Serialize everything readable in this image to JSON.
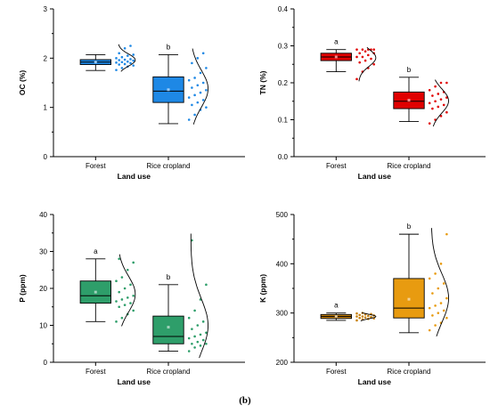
{
  "caption": "(b)",
  "chart_data": [
    {
      "type": "box",
      "ylabel": "OC (%)",
      "xlabel": "Land use",
      "ylim": [
        0,
        3
      ],
      "yticks": [
        0,
        1,
        2,
        3
      ],
      "categories": [
        "Forest",
        "Rice cropland"
      ],
      "sig_letters": [
        "",
        "b"
      ],
      "colors": [
        "#1e88e5",
        "#1e88e5"
      ],
      "boxes": [
        {
          "min": 1.75,
          "q1": 1.87,
          "median": 1.92,
          "q3": 1.97,
          "max": 2.07,
          "mean": 1.92
        },
        {
          "min": 0.67,
          "q1": 1.1,
          "median": 1.33,
          "q3": 1.62,
          "max": 2.07,
          "mean": 1.36
        }
      ],
      "points": [
        [
          1.76,
          1.8,
          1.83,
          1.85,
          1.87,
          1.88,
          1.9,
          1.91,
          1.92,
          1.93,
          1.95,
          1.96,
          1.97,
          1.98,
          2.0,
          2.02,
          2.05,
          2.07,
          2.1,
          2.2,
          2.25
        ],
        [
          0.75,
          0.85,
          0.95,
          1.0,
          1.05,
          1.1,
          1.15,
          1.2,
          1.25,
          1.3,
          1.35,
          1.4,
          1.45,
          1.5,
          1.55,
          1.6,
          1.7,
          1.8,
          1.9,
          2.0,
          2.1
        ]
      ]
    },
    {
      "type": "box",
      "ylabel": "TN (%)",
      "xlabel": "Land use",
      "ylim": [
        0,
        0.4
      ],
      "yticks": [
        0.0,
        0.1,
        0.2,
        0.3,
        0.4
      ],
      "categories": [
        "Forest",
        "Rice cropland"
      ],
      "sig_letters": [
        "a",
        "b"
      ],
      "colors": [
        "#e00000",
        "#e00000"
      ],
      "boxes": [
        {
          "min": 0.23,
          "q1": 0.26,
          "median": 0.27,
          "q3": 0.28,
          "max": 0.29,
          "mean": 0.27
        },
        {
          "min": 0.095,
          "q1": 0.13,
          "median": 0.15,
          "q3": 0.175,
          "max": 0.215,
          "mean": 0.153
        }
      ],
      "points": [
        [
          0.21,
          0.23,
          0.24,
          0.25,
          0.255,
          0.26,
          0.265,
          0.27,
          0.27,
          0.275,
          0.28,
          0.28,
          0.285,
          0.29,
          0.29,
          0.29,
          0.29,
          0.29
        ],
        [
          0.09,
          0.1,
          0.11,
          0.12,
          0.13,
          0.135,
          0.14,
          0.145,
          0.15,
          0.155,
          0.16,
          0.165,
          0.17,
          0.175,
          0.18,
          0.19,
          0.2,
          0.2
        ]
      ]
    },
    {
      "type": "box",
      "ylabel": "P (ppm)",
      "xlabel": "Land use",
      "ylim": [
        0,
        40
      ],
      "yticks": [
        0,
        10,
        20,
        30,
        40
      ],
      "categories": [
        "Forest",
        "Rice cropland"
      ],
      "sig_letters": [
        "a",
        "b"
      ],
      "colors": [
        "#2e9e6a",
        "#2e9e6a"
      ],
      "boxes": [
        {
          "min": 11,
          "q1": 16,
          "median": 18,
          "q3": 22,
          "max": 28,
          "mean": 19
        },
        {
          "min": 3,
          "q1": 5,
          "median": 7,
          "q3": 12.5,
          "max": 21,
          "mean": 9.5
        }
      ],
      "points": [
        [
          11,
          12,
          13,
          14,
          15,
          15.5,
          16,
          16.5,
          17,
          17.5,
          18,
          19,
          20,
          21,
          22,
          23,
          25,
          27,
          28
        ],
        [
          3,
          4,
          4.5,
          5,
          5,
          5.5,
          6,
          6.5,
          7,
          7.5,
          8,
          9,
          10,
          11,
          12,
          14,
          17,
          21,
          33
        ]
      ]
    },
    {
      "type": "box",
      "ylabel": "K (ppm)",
      "xlabel": "Land use",
      "ylim": [
        200,
        500
      ],
      "yticks": [
        200,
        300,
        400,
        500
      ],
      "categories": [
        "Forest",
        "Rice cropland"
      ],
      "sig_letters": [
        "a",
        "b"
      ],
      "colors": [
        "#c8820f",
        "#e89b10"
      ],
      "boxes": [
        {
          "min": 285,
          "q1": 289,
          "median": 293,
          "q3": 297,
          "max": 300,
          "mean": 293
        },
        {
          "min": 260,
          "q1": 290,
          "median": 310,
          "q3": 370,
          "max": 460,
          "mean": 328
        }
      ],
      "points": [
        [
          285,
          287,
          288,
          289,
          290,
          291,
          292,
          293,
          293,
          294,
          295,
          296,
          297,
          298,
          299,
          300
        ],
        [
          265,
          275,
          280,
          290,
          295,
          300,
          305,
          310,
          315,
          320,
          330,
          340,
          350,
          360,
          370,
          380,
          400,
          460
        ]
      ]
    }
  ]
}
